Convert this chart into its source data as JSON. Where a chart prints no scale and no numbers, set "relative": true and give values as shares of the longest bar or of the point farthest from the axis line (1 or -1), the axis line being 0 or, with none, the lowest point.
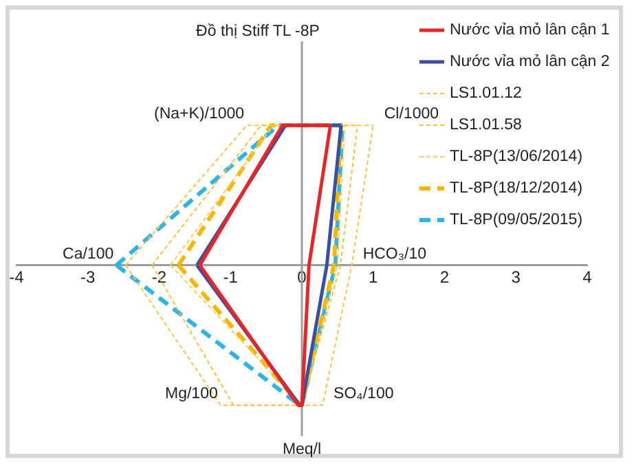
{
  "chart_data": {
    "type": "line",
    "title": "Đồ thị Stiff TL -8P",
    "xlabel": "Meq/l",
    "xlim": [
      -4,
      4
    ],
    "xticks": [
      -4,
      -3,
      -2,
      -1,
      0,
      1,
      2,
      3,
      4
    ],
    "relative": true,
    "tick_labels": "x",
    "ref_lines": [
      {
        "axis": "x",
        "value": 0,
        "color": "#9d9d9d"
      }
    ],
    "grid": false,
    "legend": "top right",
    "marker": "none",
    "annotations": [
      "(Na+K)/1000",
      "Cl/1000",
      "Ca/100",
      "HCO₃/10",
      "Mg/100",
      "SO₄/100"
    ],
    "series": [
      {
        "name": "Nước vỉa mỏ lân cận 1",
        "color": "#e8262a",
        "line_style": "solid",
        "x": [
          -1.43,
          -0.27,
          0.4
        ],
        "values": [
          0,
          1,
          1
        ]
      },
      {
        "color": "#e8262a",
        "line_style": "solid",
        "x": [
          -1.43,
          -0.05,
          0,
          0.1,
          0.4
        ],
        "values": [
          0,
          -1,
          -1,
          0,
          1
        ]
      },
      {
        "name": "Nước vỉa mỏ lân cận 2",
        "color": "#3b4ea0",
        "line_style": "solid",
        "x": [
          -1.47,
          -0.23,
          0.55
        ],
        "values": [
          0,
          1,
          1
        ]
      },
      {
        "color": "#3b4ea0",
        "line_style": "solid",
        "x": [
          -1.47,
          -0.03,
          0,
          0.35,
          0.55
        ],
        "values": [
          0,
          -1,
          -1,
          0,
          1
        ]
      },
      {
        "name": "LS1.01.12",
        "color": "#f7c548",
        "line_style": "dotted",
        "x": [
          -2.47,
          -0.77,
          1.0
        ],
        "values": [
          0,
          1,
          1
        ]
      },
      {
        "color": "#f7c548",
        "line_style": "dotted",
        "x": [
          -2.47,
          -1.14,
          0.29,
          0.7,
          1.0
        ],
        "values": [
          0,
          -1,
          -1,
          0,
          1
        ]
      },
      {
        "name": "LS1.01.58",
        "color": "#f6c33e",
        "line_style": "dotted",
        "x": [
          -2.1,
          -0.57,
          0.78
        ],
        "values": [
          0,
          1,
          1
        ]
      },
      {
        "color": "#f6c33e",
        "line_style": "dotted",
        "x": [
          -2.1,
          -0.96,
          0,
          0.54,
          0.78
        ],
        "values": [
          0,
          -1,
          -1,
          0,
          1
        ]
      },
      {
        "name": "TL-8P(13/06/2014)",
        "color": "#f9cc5c",
        "line_style": "dotted",
        "x": [
          -1.84,
          -0.4,
          0.6
        ],
        "values": [
          0,
          1,
          1
        ]
      },
      {
        "color": "#f9cc5c",
        "line_style": "dotted",
        "x": [
          -1.84,
          0,
          0.5,
          0.6
        ],
        "values": [
          0,
          -1,
          0,
          1
        ]
      },
      {
        "name": "TL-8P(18/12/2014)",
        "color": "#f5b800",
        "line_style": "dashed",
        "x": [
          -1.73,
          -0.43,
          0.55
        ],
        "values": [
          0,
          1,
          1
        ]
      },
      {
        "color": "#f5b800",
        "line_style": "dashed",
        "x": [
          -1.73,
          -0.02,
          0,
          0.45,
          0.55
        ],
        "values": [
          0,
          -1,
          -1,
          0,
          1
        ]
      },
      {
        "name": "TL-8P(09/05/2015)",
        "color": "#2eb4e6",
        "line_style": "dashed",
        "x": [
          -2.6,
          -0.33,
          0.57
        ],
        "values": [
          0,
          1,
          1
        ]
      },
      {
        "color": "#2eb4e6",
        "line_style": "dashed",
        "x": [
          -2.6,
          -0.03,
          0,
          0.47,
          0.57
        ],
        "values": [
          0,
          -1,
          -1,
          0,
          1
        ]
      }
    ]
  }
}
